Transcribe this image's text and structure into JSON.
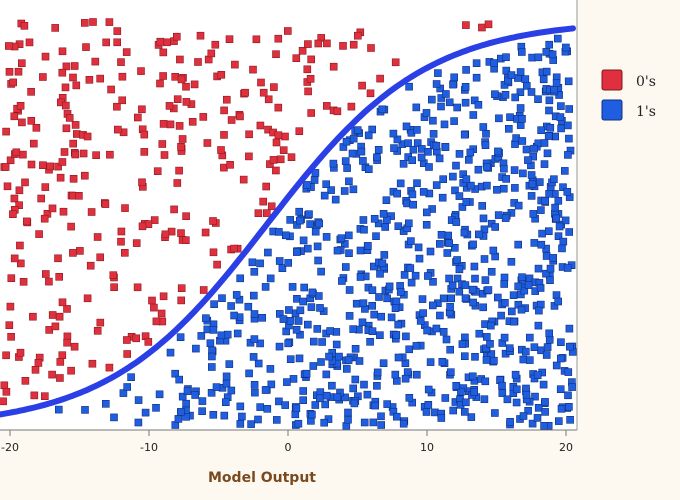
{
  "chart_data": {
    "type": "scatter",
    "title": "",
    "xlabel": "Model Output",
    "ylabel": "",
    "xlim": [
      -21,
      20.6
    ],
    "ylim": [
      0,
      1
    ],
    "grid": false,
    "legend_position": "right",
    "x_ticks": [
      "-20",
      "-10",
      "0",
      "10",
      "20"
    ],
    "series": [
      {
        "name": "0's",
        "color": "#e0303e",
        "marker": "square",
        "count": 320
      },
      {
        "name": "1's",
        "color": "#1f5ee0",
        "marker": "square",
        "count": 880
      }
    ],
    "curve": {
      "type": "logistic",
      "color": "#2b3fe6",
      "x0": -1.5,
      "scale": 5.7
    }
  }
}
